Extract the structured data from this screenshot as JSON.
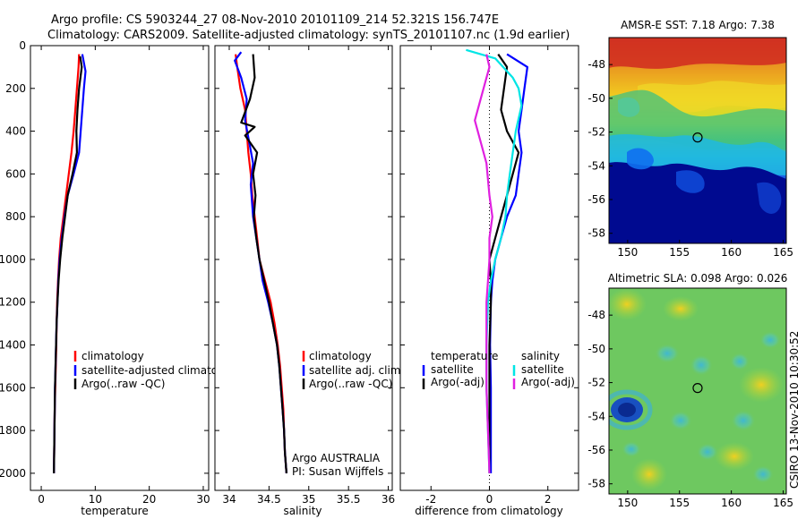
{
  "header": {
    "title_line1": "Argo profile: CS 5903244_27 08-Nov-2010 20101109_214 52.321S 156.747E",
    "title_line2": "Climatology: CARS2009. Satellite-adjusted climatology: synTS_20101107.nc (1.9d earlier)"
  },
  "colors": {
    "clim": "#ff0000",
    "sat": "#0000ff",
    "argo": "#000000",
    "sal_sat": "#00e5e5",
    "sal_argo": "#e020e0"
  },
  "chart_data": [
    {
      "id": "temperature",
      "type": "line",
      "xlabel": "temperature",
      "xlim": [
        -2,
        31
      ],
      "ylim": [
        0,
        2080
      ],
      "y_reversed": true,
      "xticks": [
        0,
        10,
        20,
        30
      ],
      "yticks": [
        0,
        200,
        400,
        600,
        800,
        1000,
        1200,
        1400,
        1600,
        1800,
        2000
      ],
      "legend": {
        "position": "lower-right",
        "entries": [
          "climatology",
          "satellite-adjusted climatology",
          "Argo(..raw -QC)"
        ]
      },
      "series": [
        {
          "name": "climatology",
          "color": "#ff0000",
          "points": [
            [
              7.0,
              40
            ],
            [
              6.9,
              100
            ],
            [
              6.6,
              200
            ],
            [
              6.3,
              300
            ],
            [
              6.0,
              400
            ],
            [
              5.6,
              500
            ],
            [
              5.1,
              600
            ],
            [
              4.6,
              700
            ],
            [
              4.1,
              800
            ],
            [
              3.6,
              900
            ],
            [
              3.3,
              1000
            ],
            [
              3.1,
              1100
            ],
            [
              2.95,
              1200
            ],
            [
              2.85,
              1300
            ],
            [
              2.8,
              1400
            ],
            [
              2.7,
              1500
            ],
            [
              2.6,
              1600
            ],
            [
              2.5,
              1700
            ],
            [
              2.45,
              1800
            ],
            [
              2.4,
              1900
            ],
            [
              2.35,
              2000
            ]
          ]
        },
        {
          "name": "satellite-adjusted climatology",
          "color": "#0000ff",
          "points": [
            [
              7.6,
              40
            ],
            [
              8.2,
              120
            ],
            [
              7.9,
              200
            ],
            [
              7.6,
              300
            ],
            [
              7.3,
              400
            ],
            [
              7.0,
              500
            ],
            [
              6.0,
              600
            ],
            [
              4.9,
              700
            ],
            [
              4.3,
              800
            ],
            [
              3.8,
              900
            ],
            [
              3.4,
              1000
            ],
            [
              3.15,
              1100
            ],
            [
              3.0,
              1200
            ],
            [
              2.85,
              1300
            ],
            [
              2.75,
              1400
            ],
            [
              2.65,
              1500
            ],
            [
              2.55,
              1600
            ],
            [
              2.5,
              1700
            ],
            [
              2.45,
              1800
            ],
            [
              2.4,
              1900
            ],
            [
              2.35,
              2000
            ]
          ]
        },
        {
          "name": "Argo(..raw -QC)",
          "color": "#000000",
          "points": [
            [
              7.2,
              50
            ],
            [
              7.5,
              100
            ],
            [
              7.0,
              200
            ],
            [
              6.7,
              300
            ],
            [
              6.5,
              400
            ],
            [
              6.6,
              500
            ],
            [
              5.8,
              600
            ],
            [
              4.9,
              700
            ],
            [
              4.4,
              800
            ],
            [
              3.9,
              900
            ],
            [
              3.5,
              1000
            ],
            [
              3.2,
              1100
            ],
            [
              3.0,
              1200
            ],
            [
              2.85,
              1300
            ],
            [
              2.75,
              1400
            ],
            [
              2.65,
              1500
            ],
            [
              2.55,
              1600
            ],
            [
              2.5,
              1700
            ],
            [
              2.45,
              1800
            ],
            [
              2.4,
              1900
            ],
            [
              2.35,
              2000
            ]
          ]
        }
      ]
    },
    {
      "id": "salinity",
      "type": "line",
      "xlabel": "salinity",
      "xlim": [
        33.82,
        36.05
      ],
      "ylim": [
        0,
        2080
      ],
      "y_reversed": true,
      "xticks": [
        34,
        34.5,
        35,
        35.5,
        36
      ],
      "yticks": [
        0,
        200,
        400,
        600,
        800,
        1000,
        1200,
        1400,
        1600,
        1800,
        2000
      ],
      "legend": {
        "position": "lower-right",
        "entries": [
          "climatology",
          "satellite adj. clim.",
          "Argo(..raw -QC)"
        ]
      },
      "annotation": [
        "Argo AUSTRALIA",
        "PI: Susan Wijffels"
      ],
      "series": [
        {
          "name": "climatology",
          "color": "#ff0000",
          "points": [
            [
              34.08,
              40
            ],
            [
              34.1,
              100
            ],
            [
              34.14,
              200
            ],
            [
              34.2,
              300
            ],
            [
              34.22,
              400
            ],
            [
              34.24,
              500
            ],
            [
              34.27,
              600
            ],
            [
              34.29,
              700
            ],
            [
              34.32,
              800
            ],
            [
              34.35,
              900
            ],
            [
              34.38,
              1000
            ],
            [
              34.45,
              1100
            ],
            [
              34.52,
              1200
            ],
            [
              34.57,
              1300
            ],
            [
              34.61,
              1400
            ],
            [
              34.64,
              1500
            ],
            [
              34.66,
              1600
            ],
            [
              34.68,
              1700
            ],
            [
              34.69,
              1800
            ],
            [
              34.7,
              1900
            ],
            [
              34.72,
              2000
            ]
          ]
        },
        {
          "name": "satellite adj. clim.",
          "color": "#0000ff",
          "points": [
            [
              34.15,
              30
            ],
            [
              34.07,
              70
            ],
            [
              34.15,
              150
            ],
            [
              34.22,
              250
            ],
            [
              34.2,
              350
            ],
            [
              34.25,
              450
            ],
            [
              34.3,
              550
            ],
            [
              34.27,
              650
            ],
            [
              34.3,
              800
            ],
            [
              34.34,
              900
            ],
            [
              34.38,
              1000
            ],
            [
              34.42,
              1100
            ],
            [
              34.49,
              1200
            ],
            [
              34.55,
              1300
            ],
            [
              34.6,
              1400
            ],
            [
              34.63,
              1500
            ],
            [
              34.65,
              1600
            ],
            [
              34.67,
              1700
            ],
            [
              34.69,
              1800
            ],
            [
              34.7,
              1900
            ],
            [
              34.72,
              2000
            ]
          ]
        },
        {
          "name": "Argo(..raw -QC)",
          "color": "#000000",
          "points": [
            [
              34.3,
              40
            ],
            [
              34.32,
              150
            ],
            [
              34.26,
              250
            ],
            [
              34.15,
              360
            ],
            [
              34.32,
              380
            ],
            [
              34.2,
              420
            ],
            [
              34.35,
              500
            ],
            [
              34.3,
              600
            ],
            [
              34.33,
              700
            ],
            [
              34.31,
              800
            ],
            [
              34.34,
              900
            ],
            [
              34.38,
              1000
            ],
            [
              34.44,
              1100
            ],
            [
              34.5,
              1200
            ],
            [
              34.55,
              1300
            ],
            [
              34.6,
              1400
            ],
            [
              34.63,
              1500
            ],
            [
              34.65,
              1600
            ],
            [
              34.67,
              1700
            ],
            [
              34.69,
              1800
            ],
            [
              34.7,
              1900
            ],
            [
              34.72,
              2000
            ]
          ]
        }
      ]
    },
    {
      "id": "difference",
      "type": "line",
      "xlabel": "difference from climatology",
      "xlim": [
        -3.05,
        3.05
      ],
      "ylim": [
        0,
        2080
      ],
      "y_reversed": true,
      "xticks": [
        -2,
        0,
        2
      ],
      "yticks": [
        0,
        200,
        400,
        600,
        800,
        1000,
        1200,
        1400,
        1600,
        1800,
        2000
      ],
      "zero_line": true,
      "legend": {
        "position": "lower-right",
        "headers": [
          "temperature",
          "salinity"
        ],
        "entries": [
          "satellite",
          "Argo(-adj)",
          "satellite",
          "Argo(-adj)"
        ]
      },
      "series": [
        {
          "name": "satellite",
          "group": "temperature",
          "color": "#0000ff",
          "points": [
            [
              0.6,
              40
            ],
            [
              1.3,
              100
            ],
            [
              1.2,
              200
            ],
            [
              1.1,
              300
            ],
            [
              1.0,
              400
            ],
            [
              1.1,
              500
            ],
            [
              1.0,
              600
            ],
            [
              0.9,
              700
            ],
            [
              0.6,
              800
            ],
            [
              0.4,
              900
            ],
            [
              0.2,
              1000
            ],
            [
              0.1,
              1100
            ],
            [
              0.05,
              1200
            ],
            [
              0.02,
              1400
            ],
            [
              0.05,
              1600
            ],
            [
              0.05,
              1800
            ],
            [
              0.05,
              2000
            ]
          ]
        },
        {
          "name": "Argo(-adj)",
          "group": "temperature",
          "color": "#000000",
          "points": [
            [
              0.3,
              40
            ],
            [
              0.6,
              100
            ],
            [
              0.5,
              200
            ],
            [
              0.4,
              300
            ],
            [
              0.6,
              400
            ],
            [
              1.0,
              500
            ],
            [
              0.8,
              600
            ],
            [
              0.6,
              700
            ],
            [
              0.4,
              800
            ],
            [
              0.2,
              900
            ],
            [
              0.0,
              1000
            ],
            [
              0.05,
              1100
            ],
            [
              0.05,
              1200
            ],
            [
              0.0,
              1400
            ],
            [
              0.0,
              1600
            ],
            [
              0.0,
              1800
            ],
            [
              0.0,
              2000
            ]
          ]
        },
        {
          "name": "satellite",
          "group": "salinity",
          "color": "#00e5e5",
          "points": [
            [
              -0.8,
              20
            ],
            [
              0.2,
              60
            ],
            [
              0.8,
              150
            ],
            [
              1.0,
              200
            ],
            [
              1.1,
              280
            ],
            [
              0.9,
              400
            ],
            [
              0.8,
              500
            ],
            [
              0.7,
              600
            ],
            [
              0.6,
              700
            ],
            [
              0.55,
              800
            ],
            [
              0.4,
              900
            ],
            [
              0.2,
              1000
            ],
            [
              0.05,
              1100
            ],
            [
              -0.05,
              1200
            ],
            [
              -0.1,
              1400
            ],
            [
              -0.1,
              1600
            ],
            [
              -0.05,
              1800
            ],
            [
              0.0,
              2000
            ]
          ]
        },
        {
          "name": "Argo(-adj)",
          "group": "salinity",
          "color": "#e020e0",
          "points": [
            [
              -0.1,
              40
            ],
            [
              0.0,
              100
            ],
            [
              -0.3,
              250
            ],
            [
              -0.5,
              350
            ],
            [
              -0.3,
              450
            ],
            [
              -0.1,
              550
            ],
            [
              0.0,
              700
            ],
            [
              0.1,
              800
            ],
            [
              0.0,
              900
            ],
            [
              0.0,
              1000
            ],
            [
              -0.05,
              1100
            ],
            [
              -0.1,
              1200
            ],
            [
              -0.1,
              1400
            ],
            [
              -0.1,
              1600
            ],
            [
              -0.05,
              1800
            ],
            [
              0.0,
              2000
            ]
          ]
        }
      ]
    },
    {
      "id": "sst_map",
      "type": "heatmap",
      "title": "AMSR-E SST: 7.18 Argo: 7.38",
      "xlim": [
        148.2,
        165.3
      ],
      "ylim": [
        -58.6,
        -46.4
      ],
      "xticks": [
        150,
        155,
        160,
        165
      ],
      "yticks": [
        -48,
        -50,
        -52,
        -54,
        -56,
        -58
      ],
      "marker": {
        "lon": 156.747,
        "lat": -52.321
      }
    },
    {
      "id": "sla_map",
      "type": "heatmap",
      "title": "Altimetric SLA: 0.098 Argo: 0.026",
      "xlim": [
        148.2,
        165.3
      ],
      "ylim": [
        -58.6,
        -46.4
      ],
      "xticks": [
        150,
        155,
        160,
        165
      ],
      "yticks": [
        -48,
        -50,
        -52,
        -54,
        -56,
        -58
      ],
      "marker": {
        "lon": 156.747,
        "lat": -52.321
      },
      "side_label": "CSIRO 13-Nov-2010 10:30:52"
    }
  ]
}
